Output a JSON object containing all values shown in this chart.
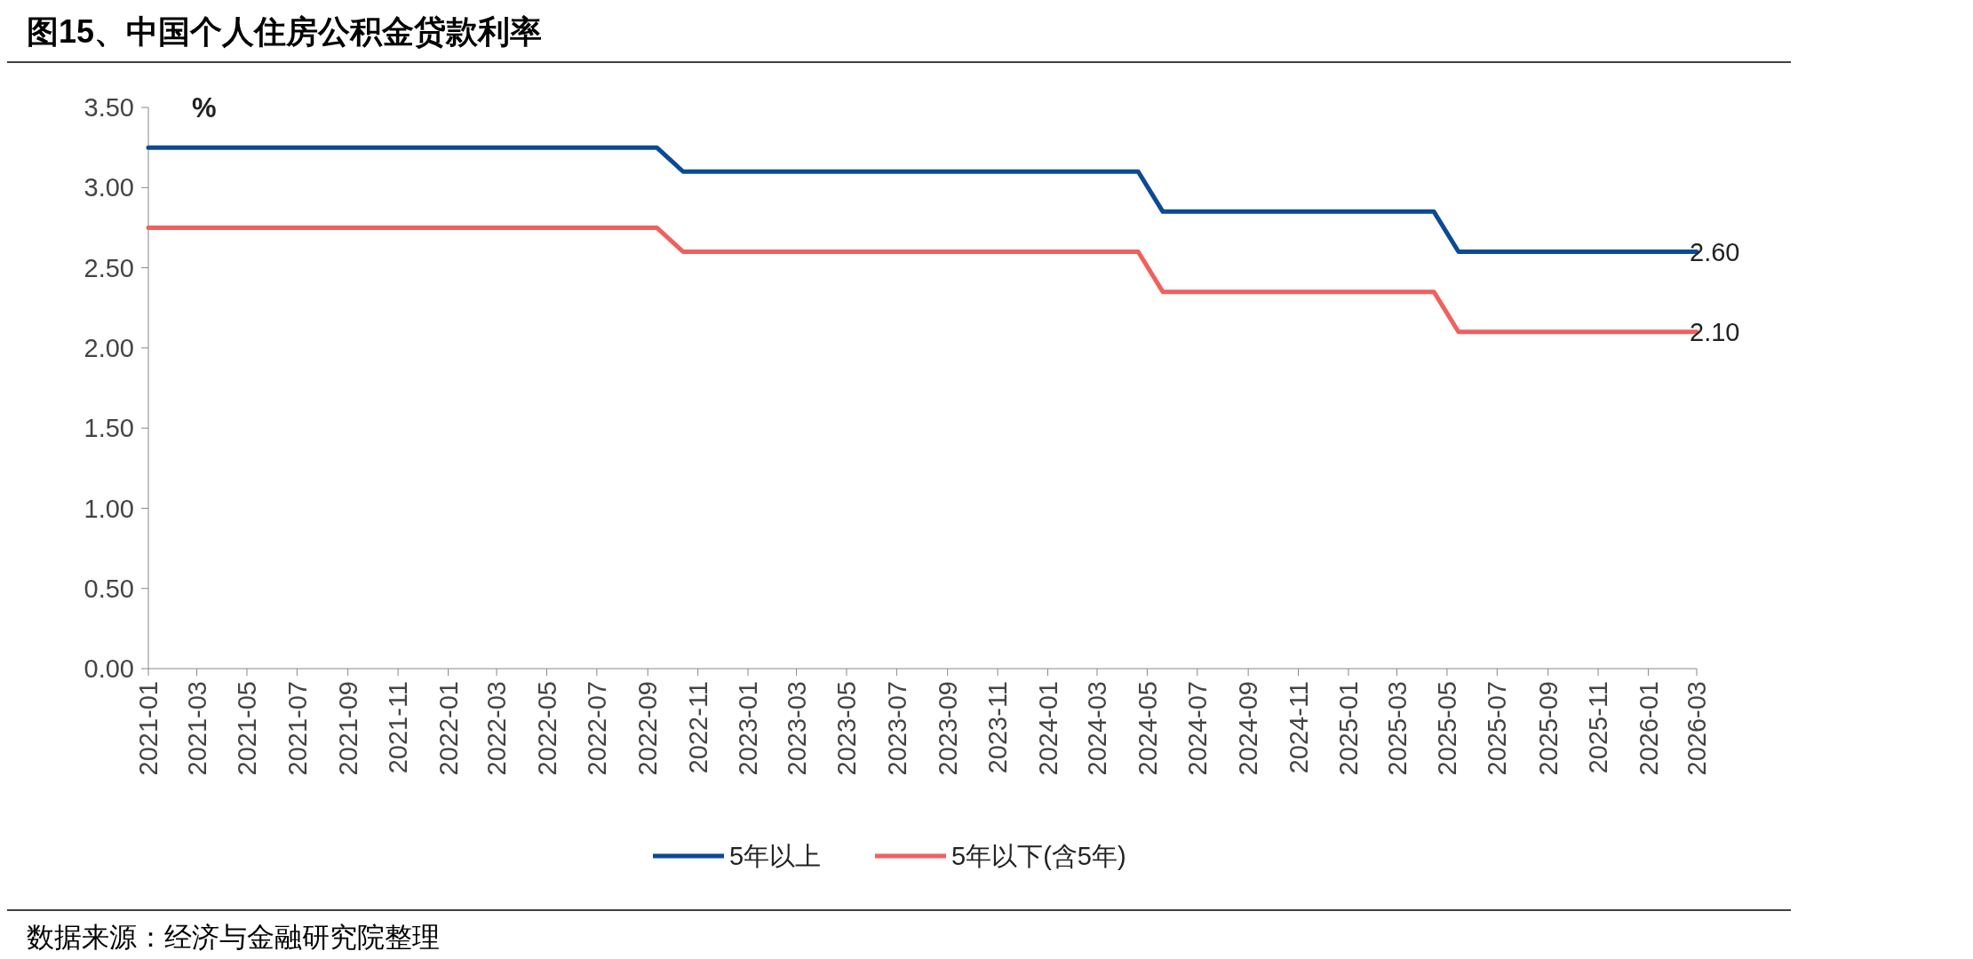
{
  "chart_data": {
    "type": "line",
    "title": "图15、中国个人住房公积金贷款利率",
    "ylabel": "%",
    "annotations": [
      "数据来源：经济与金融研究院整理"
    ],
    "x": [
      "2021-01-01",
      "2022-09-12",
      "2022-10-14",
      "2024-04-20",
      "2024-05-20",
      "2025-04-15",
      "2025-05-15",
      "2026-03-01"
    ],
    "series": [
      {
        "name": "5年以上",
        "color": "#0a4a96",
        "values": [
          3.25,
          3.25,
          3.1,
          3.1,
          2.85,
          2.85,
          2.6,
          2.6
        ],
        "value_labels": [
          null,
          null,
          null,
          null,
          null,
          null,
          null,
          "2.60"
        ]
      },
      {
        "name": "5年以下(含5年)",
        "color": "#f0605d",
        "values": [
          2.75,
          2.75,
          2.6,
          2.6,
          2.35,
          2.35,
          2.1,
          2.1
        ],
        "value_labels": [
          null,
          null,
          null,
          null,
          null,
          null,
          null,
          "2.10"
        ]
      }
    ],
    "xlim": [
      "2021-01-01",
      "2026-03-01"
    ],
    "xticks": [
      "2021-01",
      "2021-03",
      "2021-05",
      "2021-07",
      "2021-09",
      "2021-11",
      "2022-01",
      "2022-03",
      "2022-05",
      "2022-07",
      "2022-09",
      "2022-11",
      "2023-01",
      "2023-03",
      "2023-05",
      "2023-07",
      "2023-09",
      "2023-11",
      "2024-01",
      "2024-03",
      "2024-05",
      "2024-07",
      "2024-09",
      "2024-11",
      "2025-01",
      "2025-03",
      "2025-05",
      "2025-07",
      "2025-09",
      "2025-11",
      "2026-01",
      "2026-03"
    ],
    "ylim": [
      0,
      3.5
    ],
    "yticks": [
      {
        "value": 0,
        "label": "0.00"
      },
      {
        "value": 0.5,
        "label": "0.50"
      },
      {
        "value": 1,
        "label": "1.00"
      },
      {
        "value": 1.5,
        "label": "1.50"
      },
      {
        "value": 2,
        "label": "2.00"
      },
      {
        "value": 2.5,
        "label": "2.50"
      },
      {
        "value": 3,
        "label": "3.00"
      },
      {
        "value": 3.5,
        "label": "3.50"
      }
    ],
    "grid": false,
    "legend": "bottom",
    "marker": "none",
    "line_style": "solid"
  }
}
